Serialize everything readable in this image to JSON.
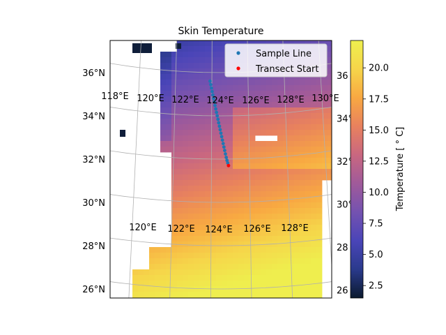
{
  "chart_data": {
    "type": "heatmap",
    "title": "Skin Temperature",
    "colorbar": {
      "label": "Temperature [$^\\circ$C]",
      "label_display": "Temperature [ ° C]",
      "range": [
        1.5,
        22.2
      ],
      "ticks": [
        "2.5",
        "5.0",
        "7.5",
        "10.0",
        "12.5",
        "15.0",
        "17.5",
        "20.0"
      ],
      "colormap": [
        "#0b1a2e",
        "#2a3a8c",
        "#4a45b8",
        "#7452b0",
        "#a05a9a",
        "#c96780",
        "#e8815e",
        "#f8a842",
        "#f6d54a",
        "#eef04e"
      ]
    },
    "lat_ticks": [
      "26°N",
      "28°N",
      "30°N",
      "32°N",
      "34°N",
      "36°N"
    ],
    "lon_labels_top": [
      "118°E",
      "120°E",
      "122°E",
      "124°E",
      "126°E",
      "128°E",
      "130°E"
    ],
    "lon_labels_mid": [
      "120°E",
      "122°E",
      "124°E",
      "126°E",
      "128°E"
    ],
    "right_edge_labels": [
      "36",
      "34°",
      "32°",
      "30°",
      "28",
      "26"
    ],
    "legend": {
      "placement": "top-right",
      "entries": [
        {
          "label": "Sample Line",
          "color": "#1f77b4"
        },
        {
          "label": "Transect Start",
          "color": "#ff0000"
        }
      ]
    },
    "sample_line": {
      "lon": [
        123.9,
        124.0,
        124.1,
        124.2,
        124.3,
        124.4,
        124.5,
        124.6,
        124.7,
        124.8,
        124.9
      ],
      "lat": [
        35.6,
        35.2,
        34.8,
        34.4,
        34.0,
        33.6,
        33.2,
        32.8,
        32.4,
        32.0,
        31.7
      ]
    },
    "transect_start": {
      "lon": 124.9,
      "lat": 31.7
    }
  }
}
